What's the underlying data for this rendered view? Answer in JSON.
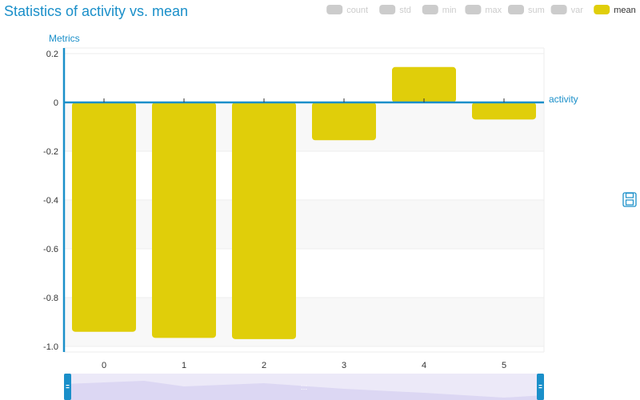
{
  "chart_data": {
    "type": "bar",
    "title": "Statistics of activity vs. mean",
    "xlabel": "activity",
    "ylabel": "Metrics",
    "categories": [
      "0",
      "1",
      "2",
      "3",
      "4",
      "5"
    ],
    "series": [
      {
        "name": "mean",
        "values": [
          -0.94,
          -0.965,
          -0.97,
          -0.155,
          0.145,
          -0.07
        ],
        "color": "#e0ce0a"
      }
    ],
    "ylim": [
      -1.0,
      0.2
    ],
    "yticks": [
      "0.2",
      "0",
      "-0.2",
      "-0.4",
      "-0.6",
      "-0.8",
      "-1.0"
    ],
    "ytick_values": [
      0.2,
      0,
      -0.2,
      -0.4,
      -0.6,
      -0.8,
      -1.0
    ],
    "grid": true,
    "legend_position": "top-right",
    "legend": [
      {
        "label": "count",
        "active": false
      },
      {
        "label": "std",
        "active": false
      },
      {
        "label": "min",
        "active": false
      },
      {
        "label": "max",
        "active": false
      },
      {
        "label": "sum",
        "active": false
      },
      {
        "label": "var",
        "active": false
      },
      {
        "label": "mean",
        "active": true
      }
    ],
    "colors": {
      "accent": "#1a8fc9",
      "bar": "#e0ce0a",
      "legend_inactive": "#cccccc",
      "band": "#f8f8f8",
      "datazoom_fill": "#e6e2f7"
    }
  },
  "toolbox": {
    "save_icon": "save-icon"
  }
}
